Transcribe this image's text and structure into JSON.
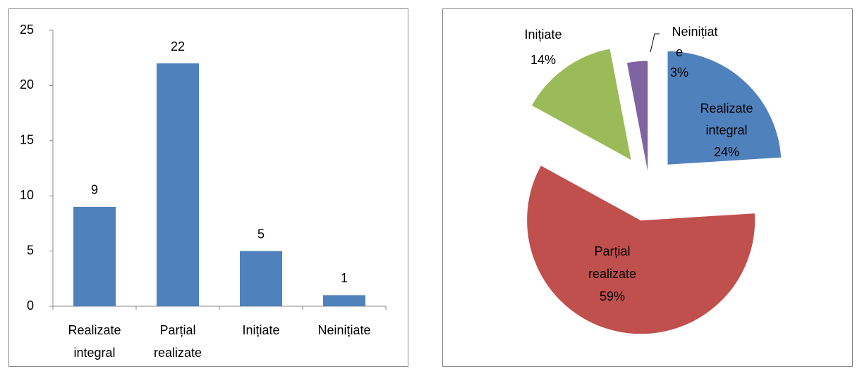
{
  "chart_data": [
    {
      "type": "bar",
      "categories": [
        "Realizate integral",
        "Parțial realizate",
        "Inițiate",
        "Neinițiate"
      ],
      "values": [
        9,
        22,
        5,
        1
      ],
      "color": "#4f81bd",
      "ylim": [
        0,
        25
      ],
      "yticks": [
        0,
        5,
        10,
        15,
        20,
        25
      ]
    },
    {
      "type": "pie",
      "categories": [
        "Realizate integral",
        "Parțial realizate",
        "Inițiate",
        "Neinițiate"
      ],
      "values": [
        24,
        59,
        14,
        3
      ],
      "value_labels": [
        "24%",
        "59%",
        "14%",
        "3%"
      ],
      "colors": [
        "#4f81bd",
        "#c0504d",
        "#9bbb59",
        "#8064a2"
      ]
    }
  ]
}
